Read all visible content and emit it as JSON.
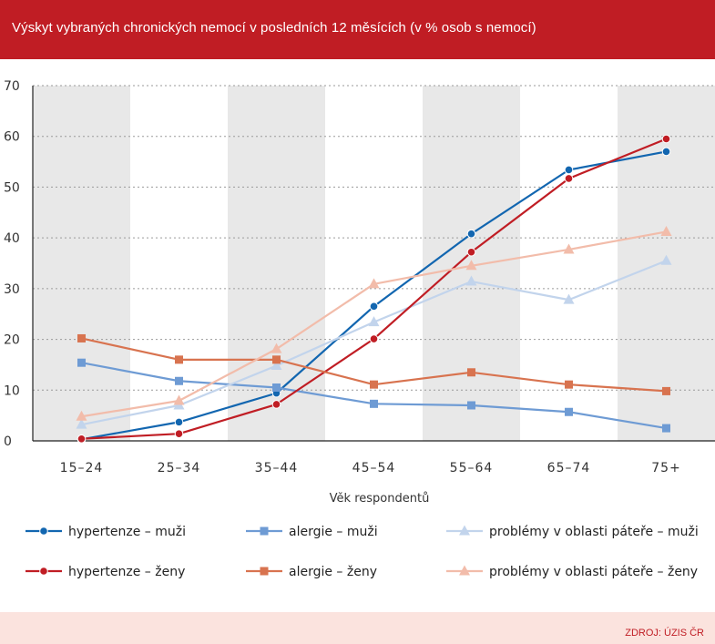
{
  "header": {
    "title": "Výskyt vybraných chronických nemocí v posledních 12 měsících (v % osob s nemocí)"
  },
  "footer": {
    "source": "ZDROJ: ÚZIS ČR"
  },
  "colors": {
    "header_bg": "#c01d24",
    "footer_bg": "#fbe3de",
    "band": "#e8e8e8",
    "hypertenze_muzi": "#1266b0",
    "alergie_muzi": "#6e9bd4",
    "pater_muzi": "#c2d4ec",
    "hypertenze_zeny": "#c01d24",
    "alergie_zeny": "#d8734f",
    "pater_zeny": "#f2bcaa"
  },
  "chart_data": {
    "type": "line",
    "xlabel": "Věk respondentů",
    "ylabel": "",
    "ylim": [
      0,
      70
    ],
    "yticks": [
      0,
      10,
      20,
      30,
      40,
      50,
      60,
      70
    ],
    "grid": true,
    "alternating_bands": true,
    "legend_position": "bottom",
    "categories": [
      "15–24",
      "25–34",
      "35–44",
      "45–54",
      "55–64",
      "65–74",
      "75+"
    ],
    "series": [
      {
        "name": "hypertenze – muži",
        "marker": "circle",
        "color": "#1266b0",
        "values": [
          0.3,
          3.7,
          9.4,
          26.5,
          40.8,
          53.4,
          57.0
        ]
      },
      {
        "name": "alergie – muži",
        "marker": "square",
        "color": "#6e9bd4",
        "values": [
          15.4,
          11.8,
          10.5,
          7.3,
          7.0,
          5.7,
          2.5
        ]
      },
      {
        "name": "problémy v oblasti páteře – muži",
        "marker": "triangle",
        "color": "#c2d4ec",
        "values": [
          3.2,
          7.0,
          14.8,
          23.4,
          31.4,
          27.8,
          35.5
        ]
      },
      {
        "name": "hypertenze – ženy",
        "marker": "circle",
        "color": "#c01d24",
        "values": [
          0.4,
          1.4,
          7.2,
          20.1,
          37.2,
          51.7,
          59.5
        ]
      },
      {
        "name": "alergie – ženy",
        "marker": "square",
        "color": "#d8734f",
        "values": [
          20.2,
          16.0,
          16.0,
          11.1,
          13.5,
          11.1,
          9.8
        ]
      },
      {
        "name": "problémy v oblasti páteře – ženy",
        "marker": "triangle",
        "color": "#f2bcaa",
        "values": [
          4.8,
          7.9,
          18.1,
          30.9,
          34.5,
          37.7,
          41.2
        ]
      }
    ]
  }
}
